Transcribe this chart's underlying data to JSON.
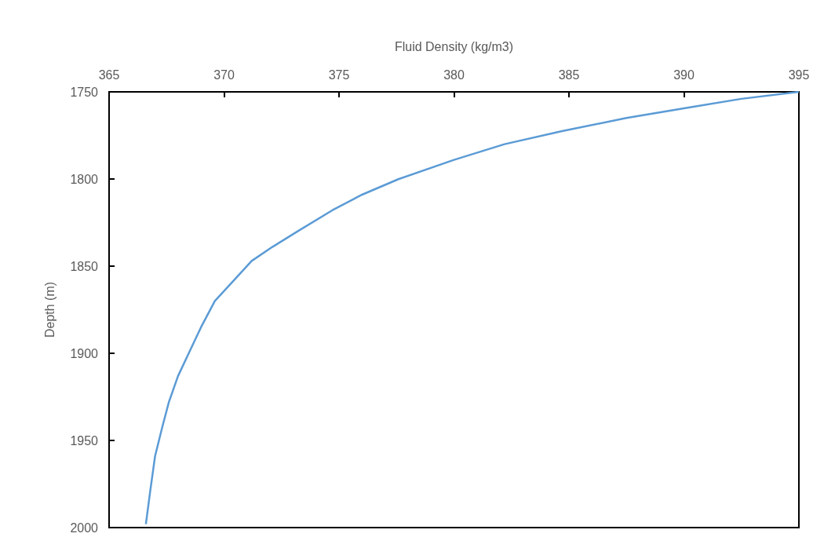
{
  "chart_data": {
    "type": "line",
    "xlabel": "Fluid Density (kg/m3)",
    "ylabel": "Depth (m)",
    "x": [
      395,
      392.5,
      390.2,
      387.5,
      384.7,
      382.2,
      380,
      377.6,
      376,
      374.7,
      373.2,
      372.1,
      371.2,
      370.3,
      369.6,
      369,
      368.5,
      368,
      367.6,
      367.3,
      367.0,
      366.8,
      366.6
    ],
    "series": [
      {
        "color": "#5b9bd5",
        "values": [
          1750,
          1754,
          1759,
          1765,
          1772.5,
          1780,
          1789,
          1800,
          1809,
          1818,
          1830,
          1839,
          1847,
          1860,
          1870,
          1885,
          1899,
          1913,
          1928,
          1943,
          1959,
          1978,
          1998
        ]
      }
    ],
    "xlim": [
      365,
      395
    ],
    "xticks": [
      365,
      370,
      375,
      380,
      385,
      390,
      395
    ],
    "ylim": [
      2000,
      1750
    ],
    "yticks": [
      1750,
      1800,
      1850,
      1900,
      1950,
      2000
    ],
    "grid": false,
    "marker": "none",
    "line_style": "solid"
  }
}
